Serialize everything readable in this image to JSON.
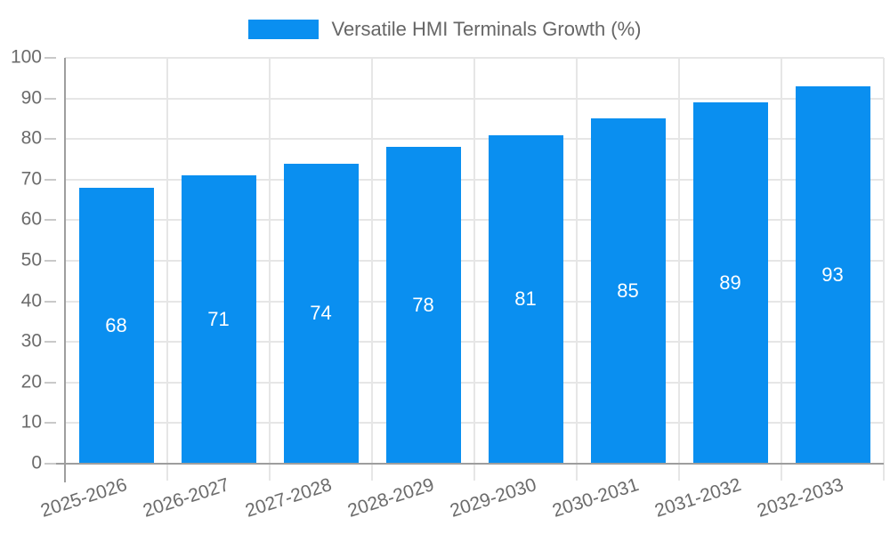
{
  "legend": {
    "series_label": "Versatile HMI Terminals Growth (%)"
  },
  "chart_data": {
    "type": "bar",
    "title": "",
    "series_name": "Versatile HMI Terminals Growth (%)",
    "categories": [
      "2025-2026",
      "2026-2027",
      "2027-2028",
      "2028-2029",
      "2029-2030",
      "2030-2031",
      "2031-2032",
      "2032-2033"
    ],
    "values": [
      68,
      71,
      74,
      78,
      81,
      85,
      89,
      93
    ],
    "xlabel": "",
    "ylabel": "",
    "ylim": [
      0,
      100
    ],
    "y_tick_step": 10,
    "y_tick_labels": [
      "0",
      "10",
      "20",
      "30",
      "40",
      "50",
      "60",
      "70",
      "80",
      "90",
      "100"
    ],
    "grid": true,
    "legend_position": "top",
    "bar_labels_inside": true,
    "bar_label_vertical_position": "middle",
    "colors": {
      "bar": "#0a8ff0",
      "bar_label": "#ffffff",
      "axis_line": "#9e9e9e",
      "grid_line": "#e6e6e6",
      "tick_mark": "#c9c9c9",
      "tick_label": "#6b6b6b",
      "legend_text": "#666666",
      "background": "#ffffff"
    }
  }
}
